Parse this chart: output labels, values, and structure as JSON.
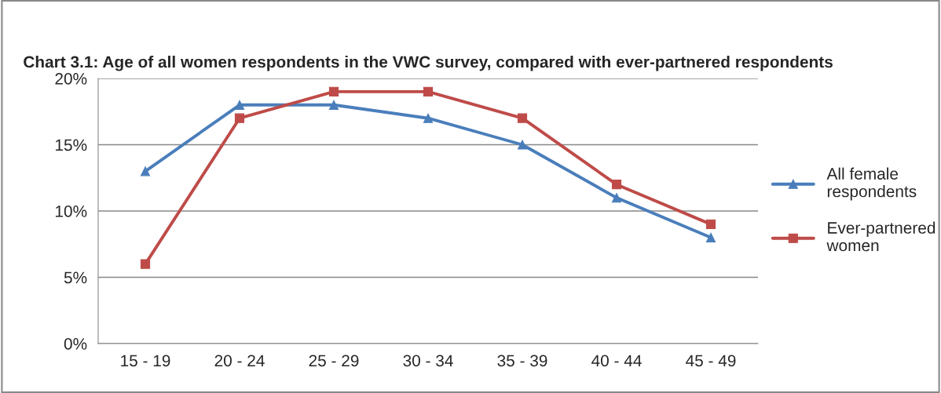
{
  "chart_data": {
    "type": "line",
    "title": "Chart 3.1: Age of all women respondents in the VWC survey, compared with ever-partnered respondents",
    "categories": [
      "15 - 19",
      "20 - 24",
      "25 - 29",
      "30 - 34",
      "35 - 39",
      "40 - 44",
      "45 - 49"
    ],
    "series": [
      {
        "name": "All female\nrespondents",
        "color": "#4a7ebb",
        "marker": "triangle",
        "values": [
          13,
          18,
          18,
          17,
          15,
          11,
          8
        ]
      },
      {
        "name": "Ever-partnered\nwomen",
        "color": "#be4b48",
        "marker": "square",
        "values": [
          6,
          17,
          19,
          19,
          17,
          12,
          9
        ]
      }
    ],
    "ylim": [
      0,
      20
    ],
    "yticks": [
      {
        "value": 0,
        "label": "0%"
      },
      {
        "value": 5,
        "label": "5%"
      },
      {
        "value": 10,
        "label": "10%"
      },
      {
        "value": 15,
        "label": "15%"
      },
      {
        "value": 20,
        "label": "20%"
      }
    ],
    "grid": "y",
    "legend": "right",
    "line_style": "solid"
  }
}
